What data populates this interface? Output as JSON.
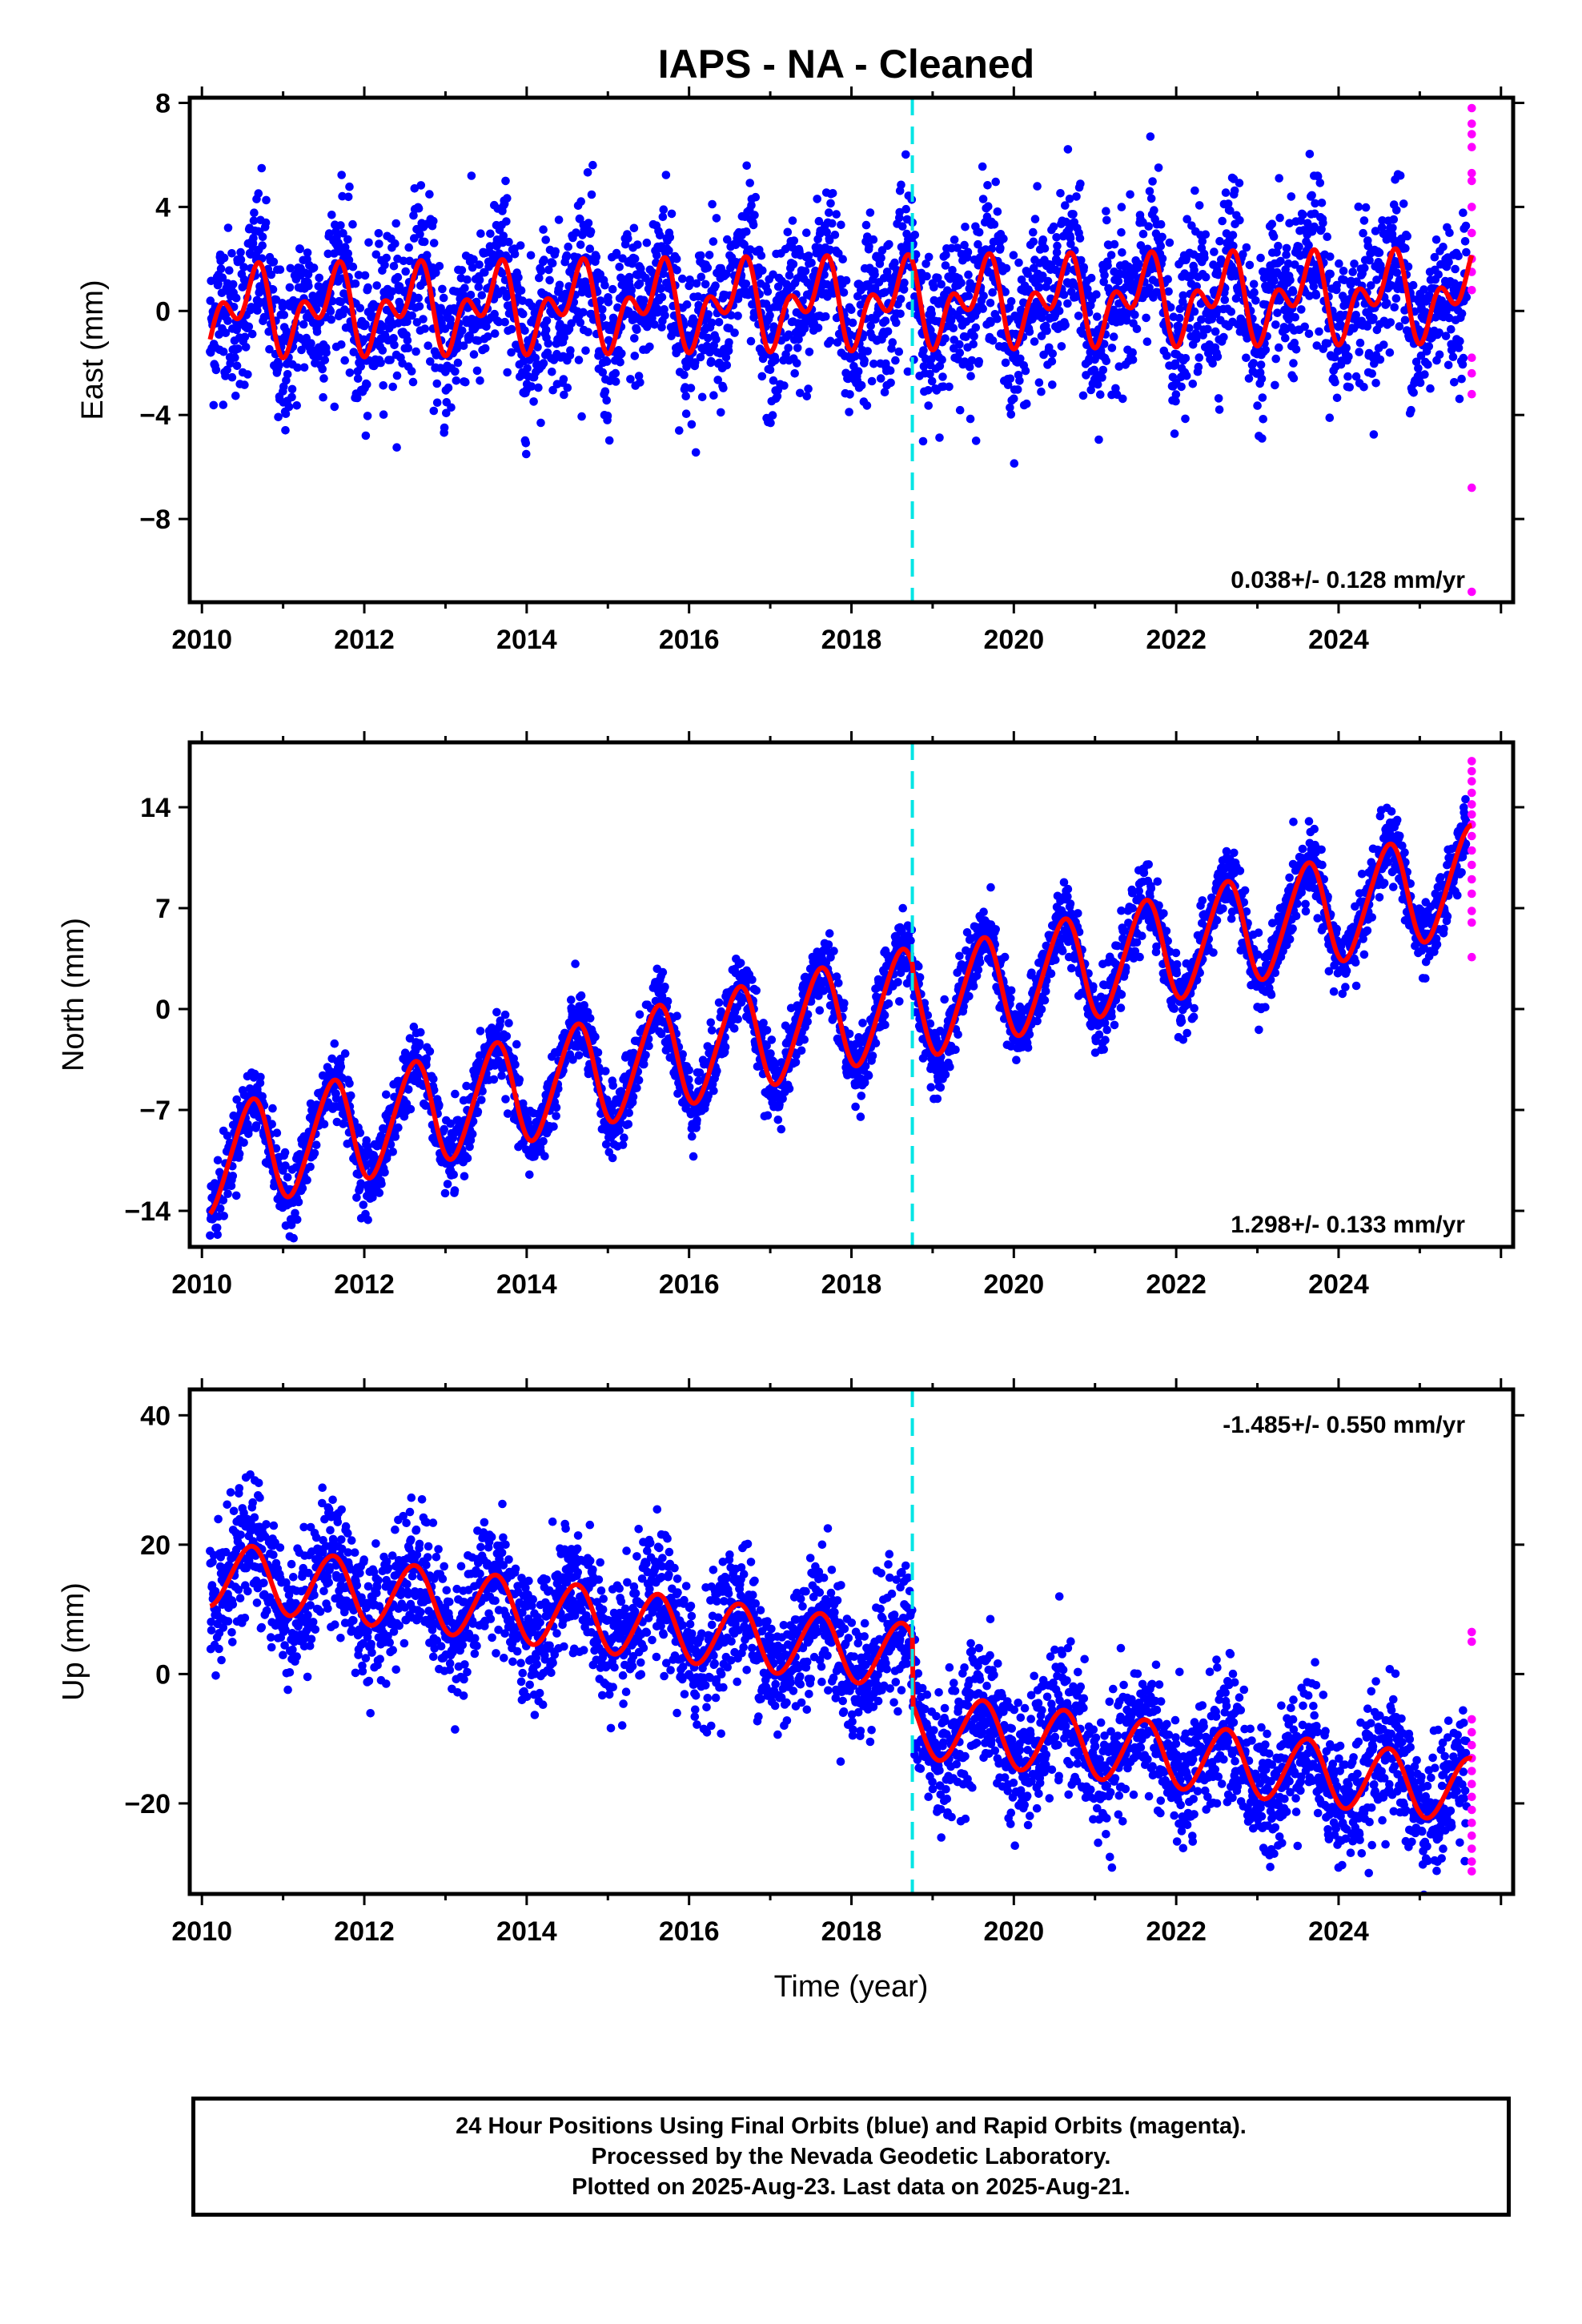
{
  "title": "IAPS  - NA - Cleaned",
  "xlabel": "Time (year)",
  "x_ticks": [
    2010,
    2012,
    2014,
    2016,
    2018,
    2020,
    2022,
    2024
  ],
  "xlim": [
    2009.85,
    2026.15
  ],
  "colors": {
    "final_orbits": "#0000ff",
    "rapid_orbits": "#ff00ff",
    "model": "#ff0000",
    "event_line": "#00e5e5"
  },
  "event_line_year": 2018.75,
  "last_data_year": 2025.64,
  "footer": {
    "line1": "24 Hour Positions Using Final Orbits (blue) and Rapid Orbits (magenta).",
    "line2": "Processed by the Nevada Geodetic Laboratory.",
    "line3": "Plotted on 2025-Aug-23. Last data on 2025-Aug-21."
  },
  "chart_data": [
    {
      "type": "scatter",
      "ylabel": "East (mm)",
      "ylim": [
        -11.2,
        8.2
      ],
      "y_ticks": [
        8,
        4,
        0,
        -4,
        -8
      ],
      "y_tick_labels": [
        "8",
        "4",
        "0",
        "−4",
        "−8"
      ],
      "rate": "0.038+/- 0.128 mm/yr",
      "rate_position": "bottom-right",
      "model": {
        "start_year": 2010.1,
        "start_value": 0.0,
        "trend_mm_per_yr": 0.038,
        "annual_amp": 1.1,
        "semiannual_amp": 1.0,
        "offset_2018_75": 0.0
      },
      "final_orbits_scatter_mm": 1.5,
      "rapid_orbits_y": [
        7.8,
        7.2,
        6.8,
        6.3,
        5.3,
        5.0,
        4.0,
        3.0,
        2.0,
        1.5,
        0.8,
        -1.8,
        -2.4,
        -3.2,
        -6.8,
        -10.8
      ]
    },
    {
      "type": "scatter",
      "ylabel": "North (mm)",
      "ylim": [
        -16.5,
        18.5
      ],
      "y_ticks": [
        14,
        7,
        0,
        -7,
        -14
      ],
      "y_tick_labels": [
        "14",
        "7",
        "0",
        "−7",
        "−14"
      ],
      "rate": "1.298+/- 0.133 mm/yr",
      "rate_position": "bottom-right",
      "model": {
        "start_year": 2010.1,
        "start_value": -10.6,
        "trend_mm_per_yr": 1.298,
        "annual_amp": 3.6,
        "semiannual_amp": 0.4,
        "offset_2018_75": -0.5
      },
      "final_orbits_scatter_mm": 1.2,
      "rapid_orbits_y": [
        17.2,
        16.5,
        15.8,
        15.0,
        14.2,
        13.5,
        12.8,
        12.0,
        11.0,
        10.0,
        9.0,
        8.0,
        6.8,
        6.0,
        3.6
      ]
    },
    {
      "type": "scatter",
      "ylabel": "Up (mm)",
      "ylim": [
        -34,
        44
      ],
      "y_ticks": [
        40,
        20,
        0,
        -20
      ],
      "y_tick_labels": [
        "40",
        "20",
        "0",
        "−20"
      ],
      "rate": "-1.485+/- 0.550 mm/yr",
      "rate_position": "top-right",
      "model": {
        "start_year": 2010.1,
        "start_value": 15.5,
        "trend_mm_per_yr": -1.485,
        "annual_amp": 5.0,
        "semiannual_amp": 0.3,
        "offset_2018_75": -10.5
      },
      "final_orbits_scatter_mm": 5.0,
      "rapid_orbits_y": [
        6.5,
        5.0,
        -7.0,
        -9.0,
        -11.0,
        -13.0,
        -15.0,
        -17.0,
        -19.0,
        -21.0,
        -23.0,
        -25.0,
        -27.0,
        -29.0,
        -30.5
      ]
    }
  ]
}
